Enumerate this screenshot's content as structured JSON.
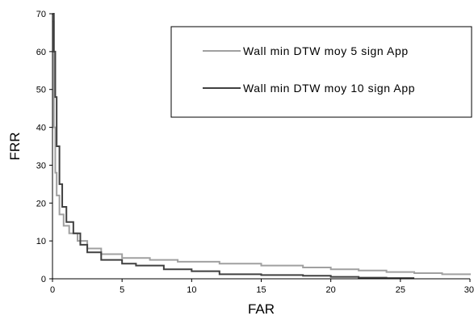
{
  "chart_data": {
    "type": "line",
    "title": "",
    "xlabel": "FAR",
    "ylabel": "FRR",
    "xlim": [
      0,
      30
    ],
    "ylim": [
      0,
      70
    ],
    "xticks": [
      0,
      5,
      10,
      15,
      20,
      25,
      30
    ],
    "yticks": [
      0,
      10,
      20,
      30,
      40,
      50,
      60,
      70
    ],
    "grid": false,
    "legend_position": "top-right",
    "series": [
      {
        "name": "Wall min DTW moy 5 sign App",
        "color": "#a0a0a0",
        "points": [
          [
            0,
            68
          ],
          [
            0.1,
            40
          ],
          [
            0.2,
            28
          ],
          [
            0.3,
            22
          ],
          [
            0.5,
            17
          ],
          [
            0.8,
            14
          ],
          [
            1.2,
            12
          ],
          [
            1.8,
            10
          ],
          [
            2.5,
            8
          ],
          [
            3.5,
            6.5
          ],
          [
            5,
            5.5
          ],
          [
            7,
            5
          ],
          [
            9,
            4.5
          ],
          [
            12,
            4
          ],
          [
            15,
            3.5
          ],
          [
            18,
            3
          ],
          [
            20,
            2.5
          ],
          [
            22,
            2.2
          ],
          [
            24,
            1.8
          ],
          [
            26,
            1.5
          ],
          [
            28,
            1.2
          ],
          [
            30,
            1
          ]
        ]
      },
      {
        "name": "Wall min DTW moy 10 sign App",
        "color": "#404040",
        "points": [
          [
            0,
            70
          ],
          [
            0.1,
            60
          ],
          [
            0.2,
            48
          ],
          [
            0.3,
            35
          ],
          [
            0.5,
            25
          ],
          [
            0.7,
            19
          ],
          [
            1,
            15
          ],
          [
            1.5,
            12
          ],
          [
            2,
            9
          ],
          [
            2.5,
            7
          ],
          [
            3.5,
            5
          ],
          [
            5,
            4
          ],
          [
            6,
            3.5
          ],
          [
            8,
            2.5
          ],
          [
            10,
            2
          ],
          [
            12,
            1.2
          ],
          [
            15,
            1
          ],
          [
            18,
            0.8
          ],
          [
            20,
            0.5
          ],
          [
            22,
            0.3
          ],
          [
            24,
            0.2
          ],
          [
            26,
            0.2
          ]
        ]
      }
    ]
  }
}
